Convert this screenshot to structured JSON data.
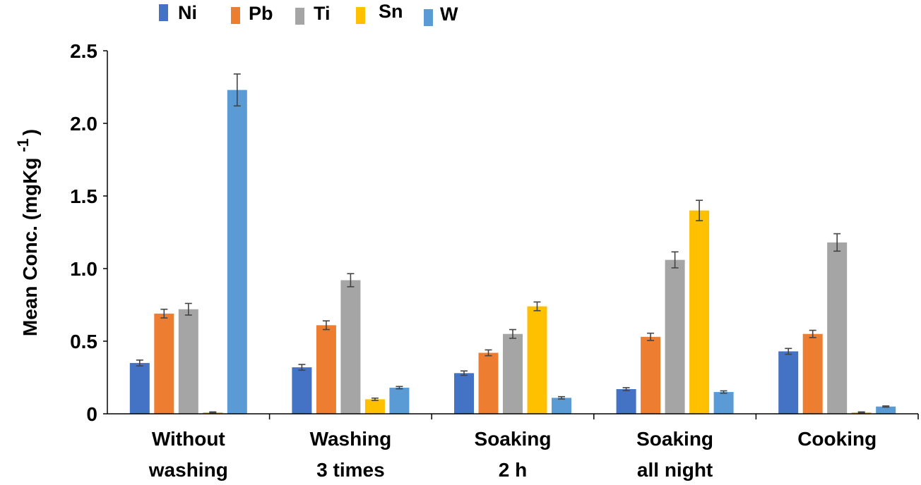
{
  "chart_data": {
    "type": "bar",
    "title": "",
    "xlabel": "",
    "ylabel": "Mean Conc. (mgKg -1)",
    "ylabel_main": "Mean Conc. (mgKg",
    "ylabel_sup": "-1",
    "ylabel_close": ")",
    "ylim": [
      0,
      2.5
    ],
    "yticks": [
      "0",
      "0.5",
      "1.0",
      "1.5",
      "2.0",
      "2.5"
    ],
    "ytick_values": [
      0,
      0.5,
      1.0,
      1.5,
      2.0,
      2.5
    ],
    "legend_position": "top",
    "grid": false,
    "categories": [
      [
        "Without",
        "washing"
      ],
      [
        "Washing",
        "3 times"
      ],
      [
        "Soaking",
        "2 h"
      ],
      [
        "Soaking",
        "all night"
      ],
      [
        "Cooking"
      ]
    ],
    "series": [
      {
        "name": "Ni",
        "color": "#4472C4",
        "values": [
          0.35,
          0.32,
          0.28,
          0.17,
          0.43
        ],
        "errors": [
          0.02,
          0.02,
          0.015,
          0.01,
          0.02
        ]
      },
      {
        "name": "Pb",
        "color": "#ED7D31",
        "values": [
          0.69,
          0.61,
          0.42,
          0.53,
          0.55
        ],
        "errors": [
          0.03,
          0.03,
          0.02,
          0.025,
          0.025
        ]
      },
      {
        "name": "Ti",
        "color": "#A5A5A5",
        "values": [
          0.72,
          0.92,
          0.55,
          1.06,
          1.18
        ],
        "errors": [
          0.04,
          0.045,
          0.03,
          0.055,
          0.06
        ]
      },
      {
        "name": "Sn",
        "color": "#FFC000",
        "values": [
          0.01,
          0.1,
          0.74,
          1.4,
          0.01
        ],
        "errors": [
          0.003,
          0.008,
          0.03,
          0.07,
          0.003
        ]
      },
      {
        "name": "W",
        "color": "#5B9BD5",
        "values": [
          2.23,
          0.18,
          0.11,
          0.15,
          0.05
        ],
        "errors": [
          0.11,
          0.008,
          0.008,
          0.008,
          0.004
        ]
      }
    ]
  }
}
